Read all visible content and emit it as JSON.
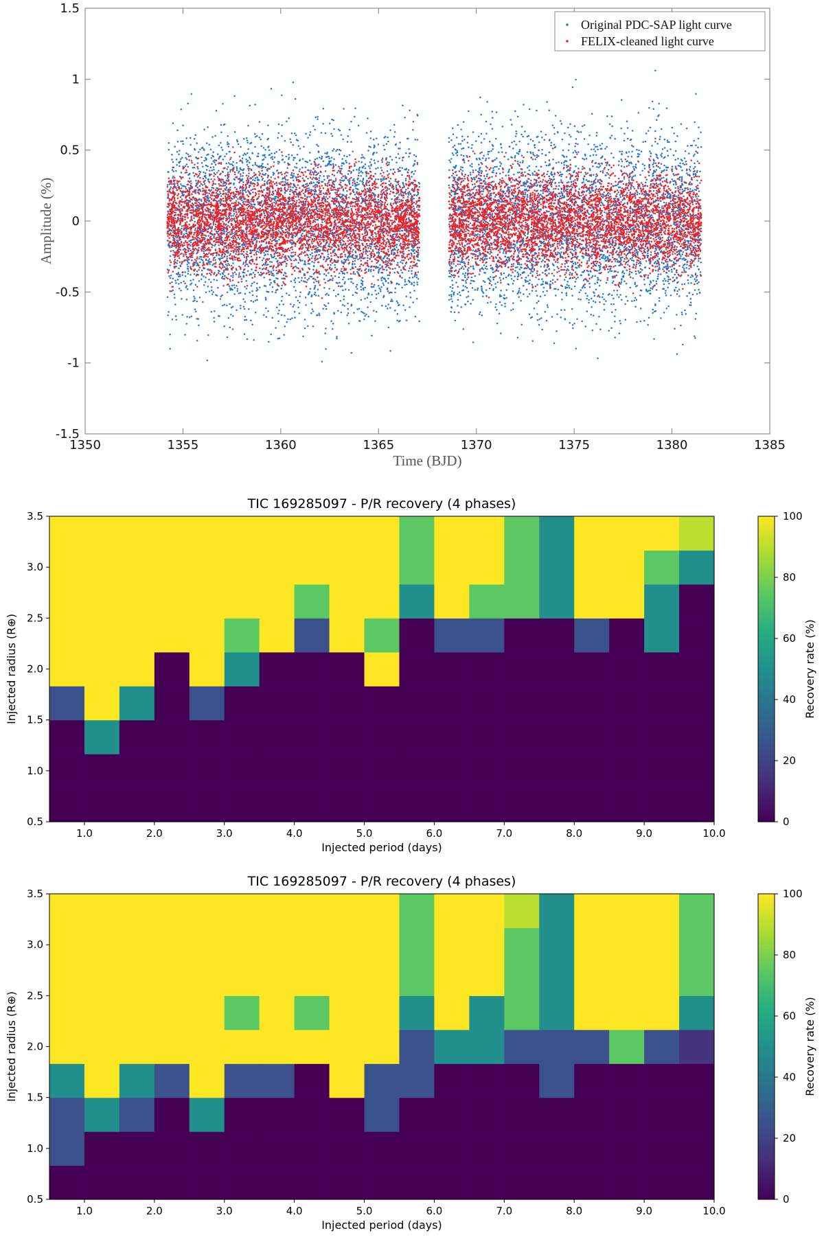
{
  "chart_data": [
    {
      "type": "scatter",
      "title": "",
      "xlabel": "Time (BJD)",
      "ylabel": "Amplitude (%)",
      "xlim": [
        1350,
        1385
      ],
      "ylim": [
        -1.5,
        1.5
      ],
      "xticks": [
        "1350",
        "1355",
        "1360",
        "1365",
        "1370",
        "1375",
        "1380",
        "1385"
      ],
      "yticks": [
        "1.5",
        "1",
        "0.5",
        "0",
        "-0.5",
        "-1",
        "-1.5"
      ],
      "legend_position": "top-right",
      "grid": false,
      "series": [
        {
          "name": "Original PDC-SAP light curve",
          "color": "#1f77d0",
          "segments": [
            [
              1354.2,
              1367.1
            ],
            [
              1368.6,
              1381.5
            ]
          ],
          "spread_std": 0.31,
          "y_range": [
            -1.02,
            1.22
          ]
        },
        {
          "name": "FELIX-cleaned light curve",
          "color": "#ff1a1a",
          "segments": [
            [
              1354.2,
              1367.1
            ],
            [
              1368.6,
              1381.5
            ]
          ],
          "spread_std": 0.17,
          "y_range": [
            -0.65,
            0.9
          ]
        }
      ]
    },
    {
      "type": "heatmap",
      "title": "TIC 169285097 - P/R recovery (4 phases)",
      "xlabel": "Injected period (days)",
      "ylabel": "Injected radius (R⊕)",
      "xlim": [
        0.5,
        10.0
      ],
      "ylim": [
        0.5,
        3.5
      ],
      "xticks": [
        "1.0",
        "2.0",
        "3.0",
        "4.0",
        "5.0",
        "6.0",
        "7.0",
        "8.0",
        "9.0",
        "10.0"
      ],
      "yticks": [
        "3.5",
        "3.0",
        "2.5",
        "2.0",
        "1.5",
        "1.0",
        "0.5"
      ],
      "colorbar_label": "Recovery rate (%)",
      "colorbar_ticks": [
        "100",
        "80",
        "60",
        "40",
        "20",
        "0"
      ],
      "colormap": "viridis",
      "vmin": 0,
      "vmax": 100,
      "n_period_bins": 19,
      "n_radius_bins": 9,
      "values": [
        [
          0,
          0,
          0,
          0,
          0,
          0,
          0,
          0,
          0,
          0,
          0,
          0,
          0,
          0,
          0,
          0,
          0,
          0,
          0
        ],
        [
          0,
          0,
          0,
          0,
          0,
          0,
          0,
          0,
          0,
          0,
          0,
          0,
          0,
          0,
          0,
          0,
          0,
          0,
          0
        ],
        [
          0,
          50,
          0,
          0,
          0,
          0,
          0,
          0,
          0,
          0,
          0,
          0,
          0,
          0,
          0,
          0,
          0,
          0,
          0
        ],
        [
          25,
          100,
          50,
          0,
          25,
          0,
          0,
          0,
          0,
          0,
          0,
          0,
          0,
          0,
          0,
          0,
          0,
          0,
          0
        ],
        [
          100,
          100,
          100,
          0,
          100,
          50,
          0,
          0,
          0,
          100,
          0,
          0,
          0,
          0,
          0,
          0,
          0,
          0,
          0
        ],
        [
          100,
          100,
          100,
          100,
          100,
          75,
          100,
          25,
          100,
          75,
          0,
          25,
          25,
          0,
          0,
          25,
          0,
          50,
          0
        ],
        [
          100,
          100,
          100,
          100,
          100,
          100,
          100,
          75,
          100,
          100,
          50,
          100,
          75,
          75,
          50,
          100,
          100,
          50,
          0
        ],
        [
          100,
          100,
          100,
          100,
          100,
          100,
          100,
          100,
          100,
          100,
          75,
          100,
          100,
          75,
          50,
          100,
          100,
          75,
          50
        ],
        [
          100,
          100,
          100,
          100,
          100,
          100,
          100,
          100,
          100,
          100,
          75,
          100,
          100,
          75,
          50,
          100,
          100,
          100,
          90
        ]
      ]
    },
    {
      "type": "heatmap",
      "title": "TIC 169285097 - P/R recovery (4 phases)",
      "xlabel": "Injected period (days)",
      "ylabel": "Injected radius (R⊕)",
      "xlim": [
        0.5,
        10.0
      ],
      "ylim": [
        0.5,
        3.5
      ],
      "xticks": [
        "1.0",
        "2.0",
        "3.0",
        "4.0",
        "5.0",
        "6.0",
        "7.0",
        "8.0",
        "9.0",
        "10.0"
      ],
      "yticks": [
        "3.5",
        "3.0",
        "2.5",
        "2.0",
        "1.5",
        "1.0",
        "0.5"
      ],
      "colorbar_label": "Recovery rate (%)",
      "colorbar_ticks": [
        "100",
        "80",
        "60",
        "40",
        "20",
        "0"
      ],
      "colormap": "viridis",
      "vmin": 0,
      "vmax": 100,
      "n_period_bins": 19,
      "n_radius_bins": 9,
      "values": [
        [
          0,
          0,
          0,
          0,
          0,
          0,
          0,
          0,
          0,
          0,
          0,
          0,
          0,
          0,
          0,
          0,
          0,
          0,
          0
        ],
        [
          25,
          0,
          0,
          0,
          0,
          0,
          0,
          0,
          0,
          0,
          0,
          0,
          0,
          0,
          0,
          0,
          0,
          0,
          0
        ],
        [
          25,
          50,
          25,
          0,
          50,
          0,
          0,
          0,
          0,
          25,
          0,
          0,
          0,
          0,
          0,
          0,
          0,
          0,
          0
        ],
        [
          50,
          100,
          50,
          25,
          100,
          25,
          25,
          0,
          100,
          25,
          25,
          0,
          0,
          0,
          25,
          0,
          0,
          0,
          0
        ],
        [
          100,
          100,
          100,
          100,
          100,
          100,
          100,
          100,
          100,
          100,
          25,
          50,
          50,
          25,
          25,
          25,
          75,
          25,
          15
        ],
        [
          100,
          100,
          100,
          100,
          100,
          75,
          100,
          75,
          100,
          100,
          50,
          100,
          50,
          75,
          50,
          100,
          100,
          100,
          50
        ],
        [
          100,
          100,
          100,
          100,
          100,
          100,
          100,
          100,
          100,
          100,
          75,
          100,
          100,
          75,
          50,
          100,
          100,
          100,
          75
        ],
        [
          100,
          100,
          100,
          100,
          100,
          100,
          100,
          100,
          100,
          100,
          75,
          100,
          100,
          75,
          50,
          100,
          100,
          100,
          75
        ],
        [
          100,
          100,
          100,
          100,
          100,
          100,
          100,
          100,
          100,
          100,
          75,
          100,
          100,
          90,
          50,
          100,
          100,
          100,
          75
        ]
      ]
    }
  ]
}
